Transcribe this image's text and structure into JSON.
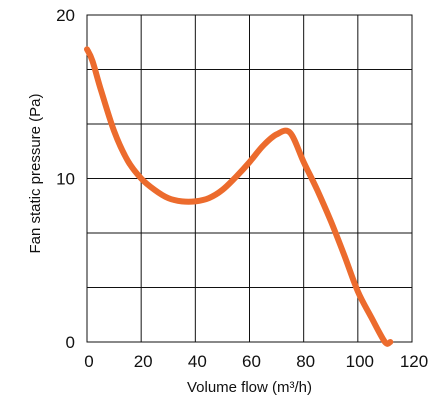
{
  "chart_data": {
    "type": "line",
    "title": "",
    "xlabel": "Volume flow (m³/h)",
    "ylabel": "Fan static pressure (Pa)",
    "xlim": [
      0,
      120
    ],
    "ylim": [
      0,
      20
    ],
    "x_ticks": [
      0,
      20,
      40,
      60,
      80,
      100,
      120
    ],
    "y_ticks": [
      0,
      10,
      20
    ],
    "x_grid": [
      0,
      20,
      40,
      60,
      80,
      100,
      120
    ],
    "y_grid": [
      0,
      3.33,
      6.67,
      10,
      13.33,
      16.67,
      20
    ],
    "grid": true,
    "line_color": "#ec6b2d",
    "series": [
      {
        "x": [
          0,
          2,
          5,
          10,
          15,
          20,
          25,
          30,
          35,
          40,
          45,
          50,
          55,
          60,
          65,
          70,
          75,
          80,
          85,
          90,
          95,
          100,
          105,
          110,
          112
        ],
        "values": [
          17.9,
          17.2,
          15.5,
          12.9,
          11.1,
          10.0,
          9.3,
          8.8,
          8.6,
          8.6,
          8.8,
          9.3,
          10.1,
          11.0,
          12.0,
          12.7,
          12.8,
          11.0,
          9.3,
          7.4,
          5.3,
          3.1,
          1.5,
          0.0,
          0.0
        ]
      }
    ]
  }
}
